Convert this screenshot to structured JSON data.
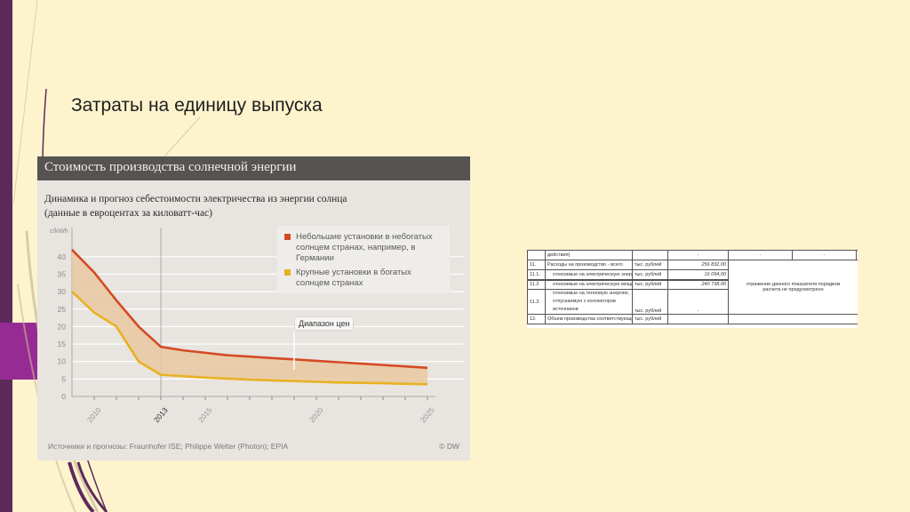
{
  "slide": {
    "title": "Затраты на единицу выпуска"
  },
  "colors": {
    "background": "#fdf3cd",
    "sidebar_dark": "#5c2a5a",
    "sidebar_accent": "#962b94",
    "series_small": "#d44a24",
    "series_large": "#e8b122",
    "band_fill": "#e9c8a0"
  },
  "chart_card": {
    "header": "Стоимость производства солнечной энергии",
    "subtitle_line1": "Динамика и прогноз себестоимости электричества из энергии солнца",
    "subtitle_line2": "(данные в евроцентах за киловатт-час)",
    "callout": "Диапазон цен",
    "source": "Источники и прогнозы: Fraunhofer ISE; Philippe Welter (Photon); EPIA",
    "copyright": "© DW"
  },
  "chart_data": {
    "type": "area",
    "title": "Стоимость производства солнечной энергии",
    "subtitle": "Динамика и прогноз себестоимости электричества из энергии солнца (данные в евроцентах за киловатт-час)",
    "xlabel": "",
    "ylabel": "c/kWh",
    "ylim": [
      0,
      45
    ],
    "yticks": [
      0,
      5,
      10,
      15,
      20,
      25,
      30,
      35,
      40
    ],
    "xlim": [
      2009,
      2025
    ],
    "xtick_labels": [
      "2010",
      "2013",
      "2015",
      "2020",
      "2025"
    ],
    "highlight_x": 2013,
    "grid": true,
    "legend_position": "top-right",
    "annotations": [
      {
        "text": "Диапазон цен",
        "x": 2019,
        "y": 11
      }
    ],
    "x": [
      2009,
      2010,
      2011,
      2012,
      2013,
      2014,
      2015,
      2016,
      2017,
      2018,
      2019,
      2020,
      2021,
      2022,
      2023,
      2024,
      2025
    ],
    "series": [
      {
        "name": "Небольшие установки в небогатых солнцем странах, например, в Германии",
        "color": "#d44a24",
        "values": [
          42,
          35.5,
          27.5,
          20,
          14.2,
          13.2,
          12.5,
          11.8,
          11.4,
          11,
          10.6,
          10.2,
          9.8,
          9.4,
          9,
          8.6,
          8.2
        ]
      },
      {
        "name": "Крупные установки в богатых солнцем странах",
        "color": "#e8b122",
        "values": [
          30,
          24,
          20,
          10,
          6.2,
          5.8,
          5.4,
          5.1,
          4.8,
          4.6,
          4.4,
          4.2,
          4.0,
          3.9,
          3.8,
          3.6,
          3.5
        ]
      }
    ]
  },
  "table": {
    "rows": [
      {
        "num": "",
        "name": "действия)",
        "unit": "",
        "value": "-",
        "c5": "-",
        "c6": "-",
        "c7": "-"
      },
      {
        "num": "11.",
        "name": "Расходы на производство - всего",
        "unit": "тыс. рублей",
        "value": "256 832,00"
      },
      {
        "num": "11.1.",
        "name": "относимые на электрическую энергию",
        "unit": "тыс. рублей",
        "value": "16 094,00"
      },
      {
        "num": "11.2.",
        "name": "относимые на электрическую мощность",
        "unit": "тыс. рублей",
        "value": "240 738,00"
      },
      {
        "num": "11.3.",
        "name": "относимые на тепловую энергию, отпускаемую с коллекторов источников",
        "unit": "тыс. рублей",
        "value": "-"
      },
      {
        "num": "12.",
        "name": "Объем производства соответствующего",
        "unit": "тыс. рублей",
        "value": ""
      }
    ],
    "merged_note": "отражение данного показателя порядком расчета не предусмотрено"
  }
}
